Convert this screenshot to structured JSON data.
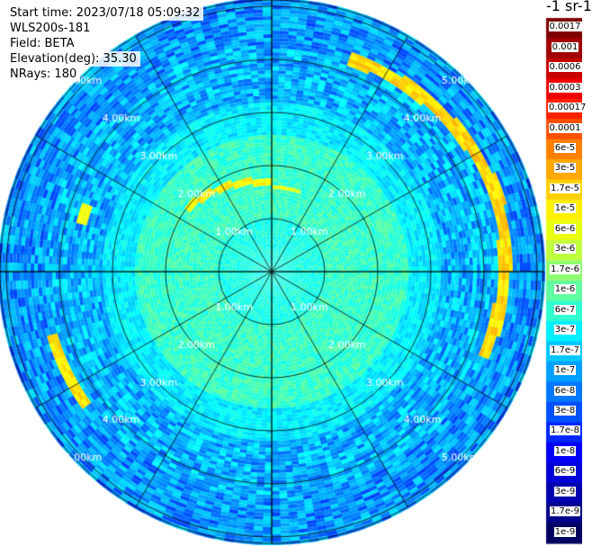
{
  "info": {
    "start_time": "Start time: 2023/07/18 05:09:32",
    "instrument": "WLS200s-181",
    "field": "Field: BETA",
    "elevation": "Elevation(deg): 35.30",
    "nrays": "NRays: 180"
  },
  "unit_label": "-1 sr-1",
  "chart_data": {
    "type": "heatmap",
    "projection": "polar (PPI scan)",
    "field": "BETA",
    "range_ring_labels": [
      "1.00km",
      "2.00km",
      "3.00km",
      "4.00km",
      "5.00km"
    ],
    "range_rings_km": [
      1,
      2,
      3,
      4,
      5
    ],
    "max_range_km": 5.0,
    "n_rays": 180,
    "spoke_interval_deg": 30,
    "colorbar": {
      "scale": "log",
      "labels": [
        "0.0017",
        "0.001",
        "0.0006",
        "0.0003",
        "0.00017",
        "0.0001",
        "6e-5",
        "3e-5",
        "1.7e-5",
        "1e-5",
        "6e-6",
        "3e-6",
        "1.7e-6",
        "1e-6",
        "6e-7",
        "3e-7",
        "1.7e-7",
        "1e-7",
        "6e-8",
        "3e-8",
        "1.7e-8",
        "1e-8",
        "6e-9",
        "3e-9",
        "1.7e-9",
        "1e-9"
      ],
      "colors": [
        "#800000",
        "#a00000",
        "#c80000",
        "#f00000",
        "#ff2000",
        "#ff5000",
        "#ff8000",
        "#ffa800",
        "#ffd000",
        "#fff000",
        "#e8ff10",
        "#c0ff40",
        "#90ff70",
        "#60ffa0",
        "#30ffd0",
        "#00f0ff",
        "#00c8ff",
        "#00a0ff",
        "#0078ff",
        "#0050ff",
        "#0028ff",
        "#0000f8",
        "#0000d8",
        "#0000b0",
        "#000088",
        "#000060"
      ]
    }
  }
}
